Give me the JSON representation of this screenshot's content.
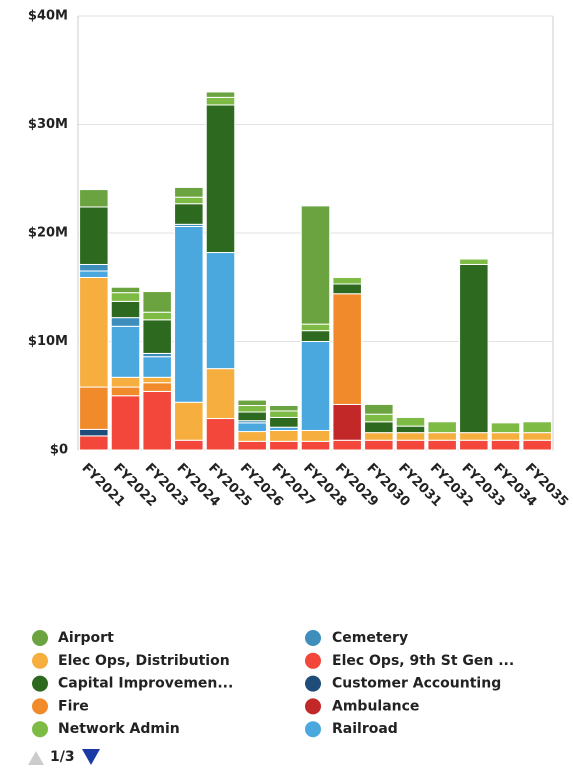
{
  "chart_data": {
    "type": "stacked_bar",
    "categories": [
      "FY2021",
      "FY2022",
      "FY2023",
      "FY2024",
      "FY2025",
      "FY2026",
      "FY2027",
      "FY2028",
      "FY2029",
      "FY2030",
      "FY2031",
      "FY2032",
      "FY2033",
      "FY2034",
      "FY2035"
    ],
    "series": [
      {
        "name": "Airport",
        "color": "#6aa33f",
        "values": [
          1.6,
          0.5,
          1.9,
          0.9,
          0.5,
          0.5,
          0.5,
          10.9,
          0,
          0.9,
          0,
          0,
          0,
          0,
          0
        ]
      },
      {
        "name": "Cemetery",
        "color": "#3d8dbd",
        "values": [
          0.6,
          0.8,
          0.3,
          0.2,
          0,
          0.2,
          0,
          0,
          0,
          0,
          0,
          0,
          0,
          0,
          0
        ]
      },
      {
        "name": "Elec Ops, Distribution",
        "color": "#f6ae3e",
        "values": [
          10.1,
          0.9,
          0.5,
          3.5,
          4.6,
          0.9,
          1.0,
          1.0,
          0,
          0.7,
          0.7,
          0.7,
          0.7,
          0.7,
          0.7
        ]
      },
      {
        "name": "Elec Ops, 9th St Gen ...",
        "color": "#f2473a",
        "values": [
          1.3,
          5.0,
          5.4,
          0.9,
          2.9,
          0.8,
          0.8,
          0.8,
          0.9,
          0.9,
          0.9,
          0.9,
          0.9,
          0.9,
          0.9
        ]
      },
      {
        "name": "Capital Improvemen...",
        "color": "#2d6a1f",
        "values": [
          5.3,
          1.5,
          3.1,
          1.9,
          13.6,
          0.8,
          0.9,
          1.0,
          0.9,
          1.0,
          0.6,
          0,
          15.5,
          0,
          0
        ]
      },
      {
        "name": "Customer Accounting",
        "color": "#1f4c78",
        "values": [
          0.6,
          0,
          0,
          0,
          0,
          0,
          0,
          0,
          0,
          0,
          0,
          0,
          0,
          0,
          0
        ]
      },
      {
        "name": "Fire",
        "color": "#f08a2b",
        "values": [
          3.9,
          0.8,
          0.8,
          0,
          0,
          0,
          0,
          0,
          10.2,
          0,
          0,
          0,
          0,
          0,
          0
        ]
      },
      {
        "name": "Ambulance",
        "color": "#c22828",
        "values": [
          0,
          0,
          0,
          0,
          0,
          0,
          0,
          0,
          3.3,
          0,
          0,
          0,
          0,
          0,
          0
        ]
      },
      {
        "name": "Network Admin",
        "color": "#7dbb45",
        "values": [
          0,
          0.8,
          0.7,
          0.6,
          0.7,
          0.6,
          0.6,
          0.6,
          0.6,
          0.7,
          0.8,
          1.0,
          0.5,
          0.9,
          1.0
        ]
      },
      {
        "name": "Railroad",
        "color": "#4aa8df",
        "values": [
          0.6,
          4.7,
          1.9,
          16.2,
          10.7,
          0.8,
          0.3,
          8.2,
          0,
          0,
          0,
          0,
          0,
          0,
          0
        ]
      }
    ],
    "ylim": [
      0,
      40
    ],
    "yticks": [
      {
        "value": 0,
        "label": "$0"
      },
      {
        "value": 10,
        "label": "$10M"
      },
      {
        "value": 20,
        "label": "$20M"
      },
      {
        "value": 30,
        "label": "$30M"
      },
      {
        "value": 40,
        "label": "$40M"
      }
    ],
    "grid": true,
    "legend_page": "1/3"
  }
}
